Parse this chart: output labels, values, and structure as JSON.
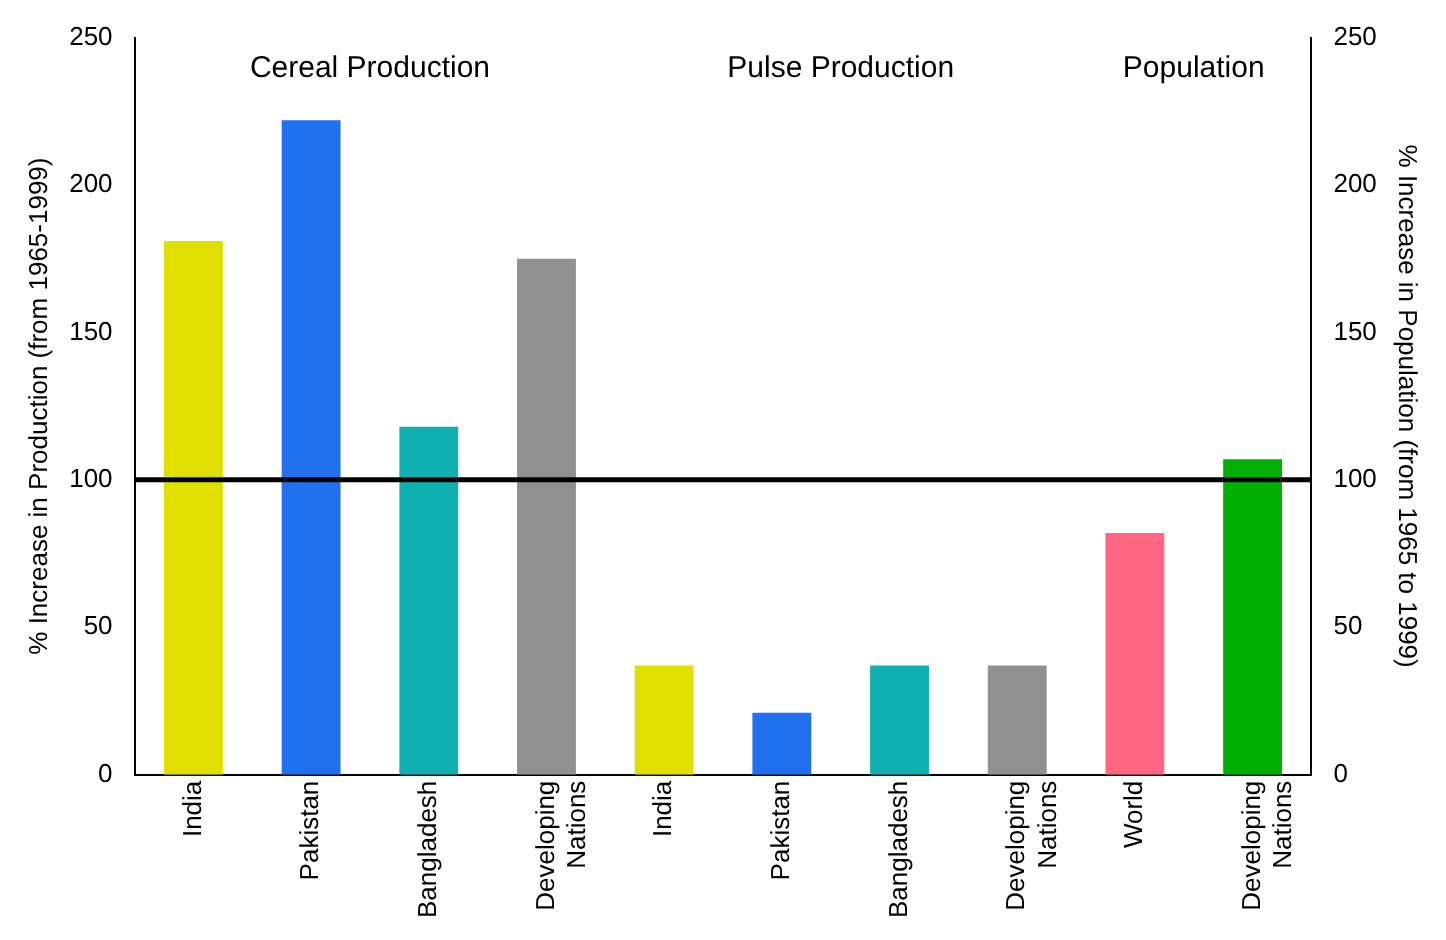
{
  "chart_data": {
    "type": "bar",
    "ylabel": "% Increase in Production (from 1965-1999)",
    "y2label": "% Increase in Population (from 1965 to 1999)",
    "categories": [
      "India",
      "Pakistan",
      "Bangladesh",
      "Developing Nations",
      "India",
      "Pakistan",
      "Bangladesh",
      "Developing Nations",
      "World",
      "Developing Nations"
    ],
    "series": [
      {
        "colors": [
          "#e0e000",
          "#2070f0",
          "#10b0b0",
          "#909090",
          "#e0e000",
          "#2070f0",
          "#10b0b0",
          "#909090",
          null,
          null
        ],
        "values": [
          181,
          222,
          118,
          175,
          37,
          21,
          37,
          37,
          null,
          null
        ]
      },
      {
        "colors": [
          null,
          null,
          null,
          null,
          null,
          null,
          null,
          null,
          "#ff6680",
          "#00b000"
        ],
        "values": [
          null,
          null,
          null,
          null,
          null,
          null,
          null,
          null,
          82,
          107
        ]
      }
    ],
    "ylim": [
      0,
      250
    ],
    "yticks": [
      0,
      50,
      100,
      150,
      200,
      250
    ],
    "y2lim": [
      0,
      250
    ],
    "y2ticks": [
      0,
      50,
      100,
      150,
      200,
      250
    ],
    "ref_lines": [
      {
        "axis": "y",
        "value": 100,
        "color": "#000000"
      }
    ],
    "annotations": [
      "Cereal Production",
      "Pulse Production",
      "Population"
    ],
    "grid": false,
    "legend": false
  }
}
